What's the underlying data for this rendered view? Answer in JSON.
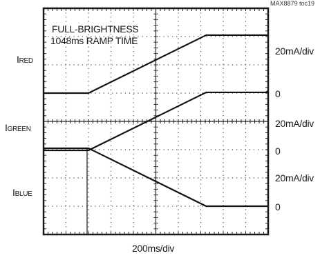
{
  "chart_data": {
    "type": "line",
    "figure_id": "MAX8879 toc19",
    "annotation": [
      "FULL-BRIGHTNESS",
      "1048ms RAMP TIME"
    ],
    "xlabel": "200ms/div",
    "x_unit": "ms",
    "xlim": [
      0,
      2000
    ],
    "traces": [
      {
        "name": "I",
        "name_sub": "RED",
        "scale": "20mA/div",
        "zero_label": "0",
        "y_unit": "mA",
        "ylim": [
          -8,
          52
        ],
        "points": [
          [
            0,
            0
          ],
          [
            400,
            0
          ],
          [
            1448,
            41
          ],
          [
            2000,
            41
          ]
        ]
      },
      {
        "name": "I",
        "name_sub": "GREEN",
        "scale": "20mA/div",
        "zero_label": "0",
        "y_unit": "mA",
        "ylim": [
          -8,
          52
        ],
        "points": [
          [
            0,
            0
          ],
          [
            400,
            0
          ],
          [
            1448,
            41
          ],
          [
            2000,
            41
          ]
        ]
      },
      {
        "name": "I",
        "name_sub": "BLUE",
        "scale": "20mA/div",
        "zero_label": "0",
        "y_unit": "mA",
        "ylim": [
          -8,
          52
        ],
        "points": [
          [
            0,
            41
          ],
          [
            400,
            41
          ],
          [
            1448,
            0
          ],
          [
            2000,
            0
          ]
        ],
        "glitch": {
          "x": 400,
          "y": -20
        }
      }
    ],
    "grid": true,
    "grid_divisions": {
      "x": 10,
      "y": 8
    }
  }
}
